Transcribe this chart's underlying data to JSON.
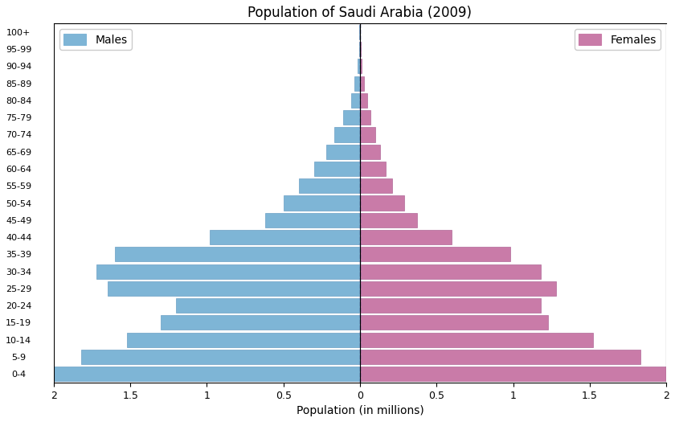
{
  "title": "Population of Saudi Arabia (2009)",
  "xlabel": "Population (in millions)",
  "age_groups": [
    "0-4",
    "5-9",
    "10-14",
    "15-19",
    "20-24",
    "25-29",
    "30-34",
    "35-39",
    "40-44",
    "45-49",
    "50-54",
    "55-59",
    "60-64",
    "65-69",
    "70-74",
    "75-79",
    "80-84",
    "85-89",
    "90-94",
    "95-99",
    "100+"
  ],
  "males": [
    2.0,
    1.82,
    1.52,
    1.3,
    1.2,
    1.65,
    1.72,
    1.6,
    0.98,
    0.62,
    0.5,
    0.4,
    0.3,
    0.22,
    0.17,
    0.11,
    0.06,
    0.035,
    0.015,
    0.006,
    0.003
  ],
  "females": [
    2.0,
    1.83,
    1.52,
    1.23,
    1.18,
    1.28,
    1.18,
    0.98,
    0.6,
    0.37,
    0.29,
    0.21,
    0.17,
    0.13,
    0.1,
    0.07,
    0.045,
    0.025,
    0.012,
    0.005,
    0.002
  ],
  "male_color": "#7EB5D6",
  "female_color": "#C97BA8",
  "male_edge_color": "#6a9fc4",
  "female_edge_color": "#b06898",
  "xlim": 2.0,
  "title_fontsize": 12,
  "label_fontsize": 10,
  "tick_fontsize": 9,
  "ytick_fontsize": 8,
  "xticks": [
    -2.0,
    -1.5,
    -1.0,
    -0.5,
    0.0,
    0.5,
    1.0,
    1.5,
    2.0
  ],
  "xtick_labels": [
    "2",
    "1.5",
    "1",
    "0.5",
    "0",
    "0.5",
    "1",
    "1.5",
    "2"
  ]
}
